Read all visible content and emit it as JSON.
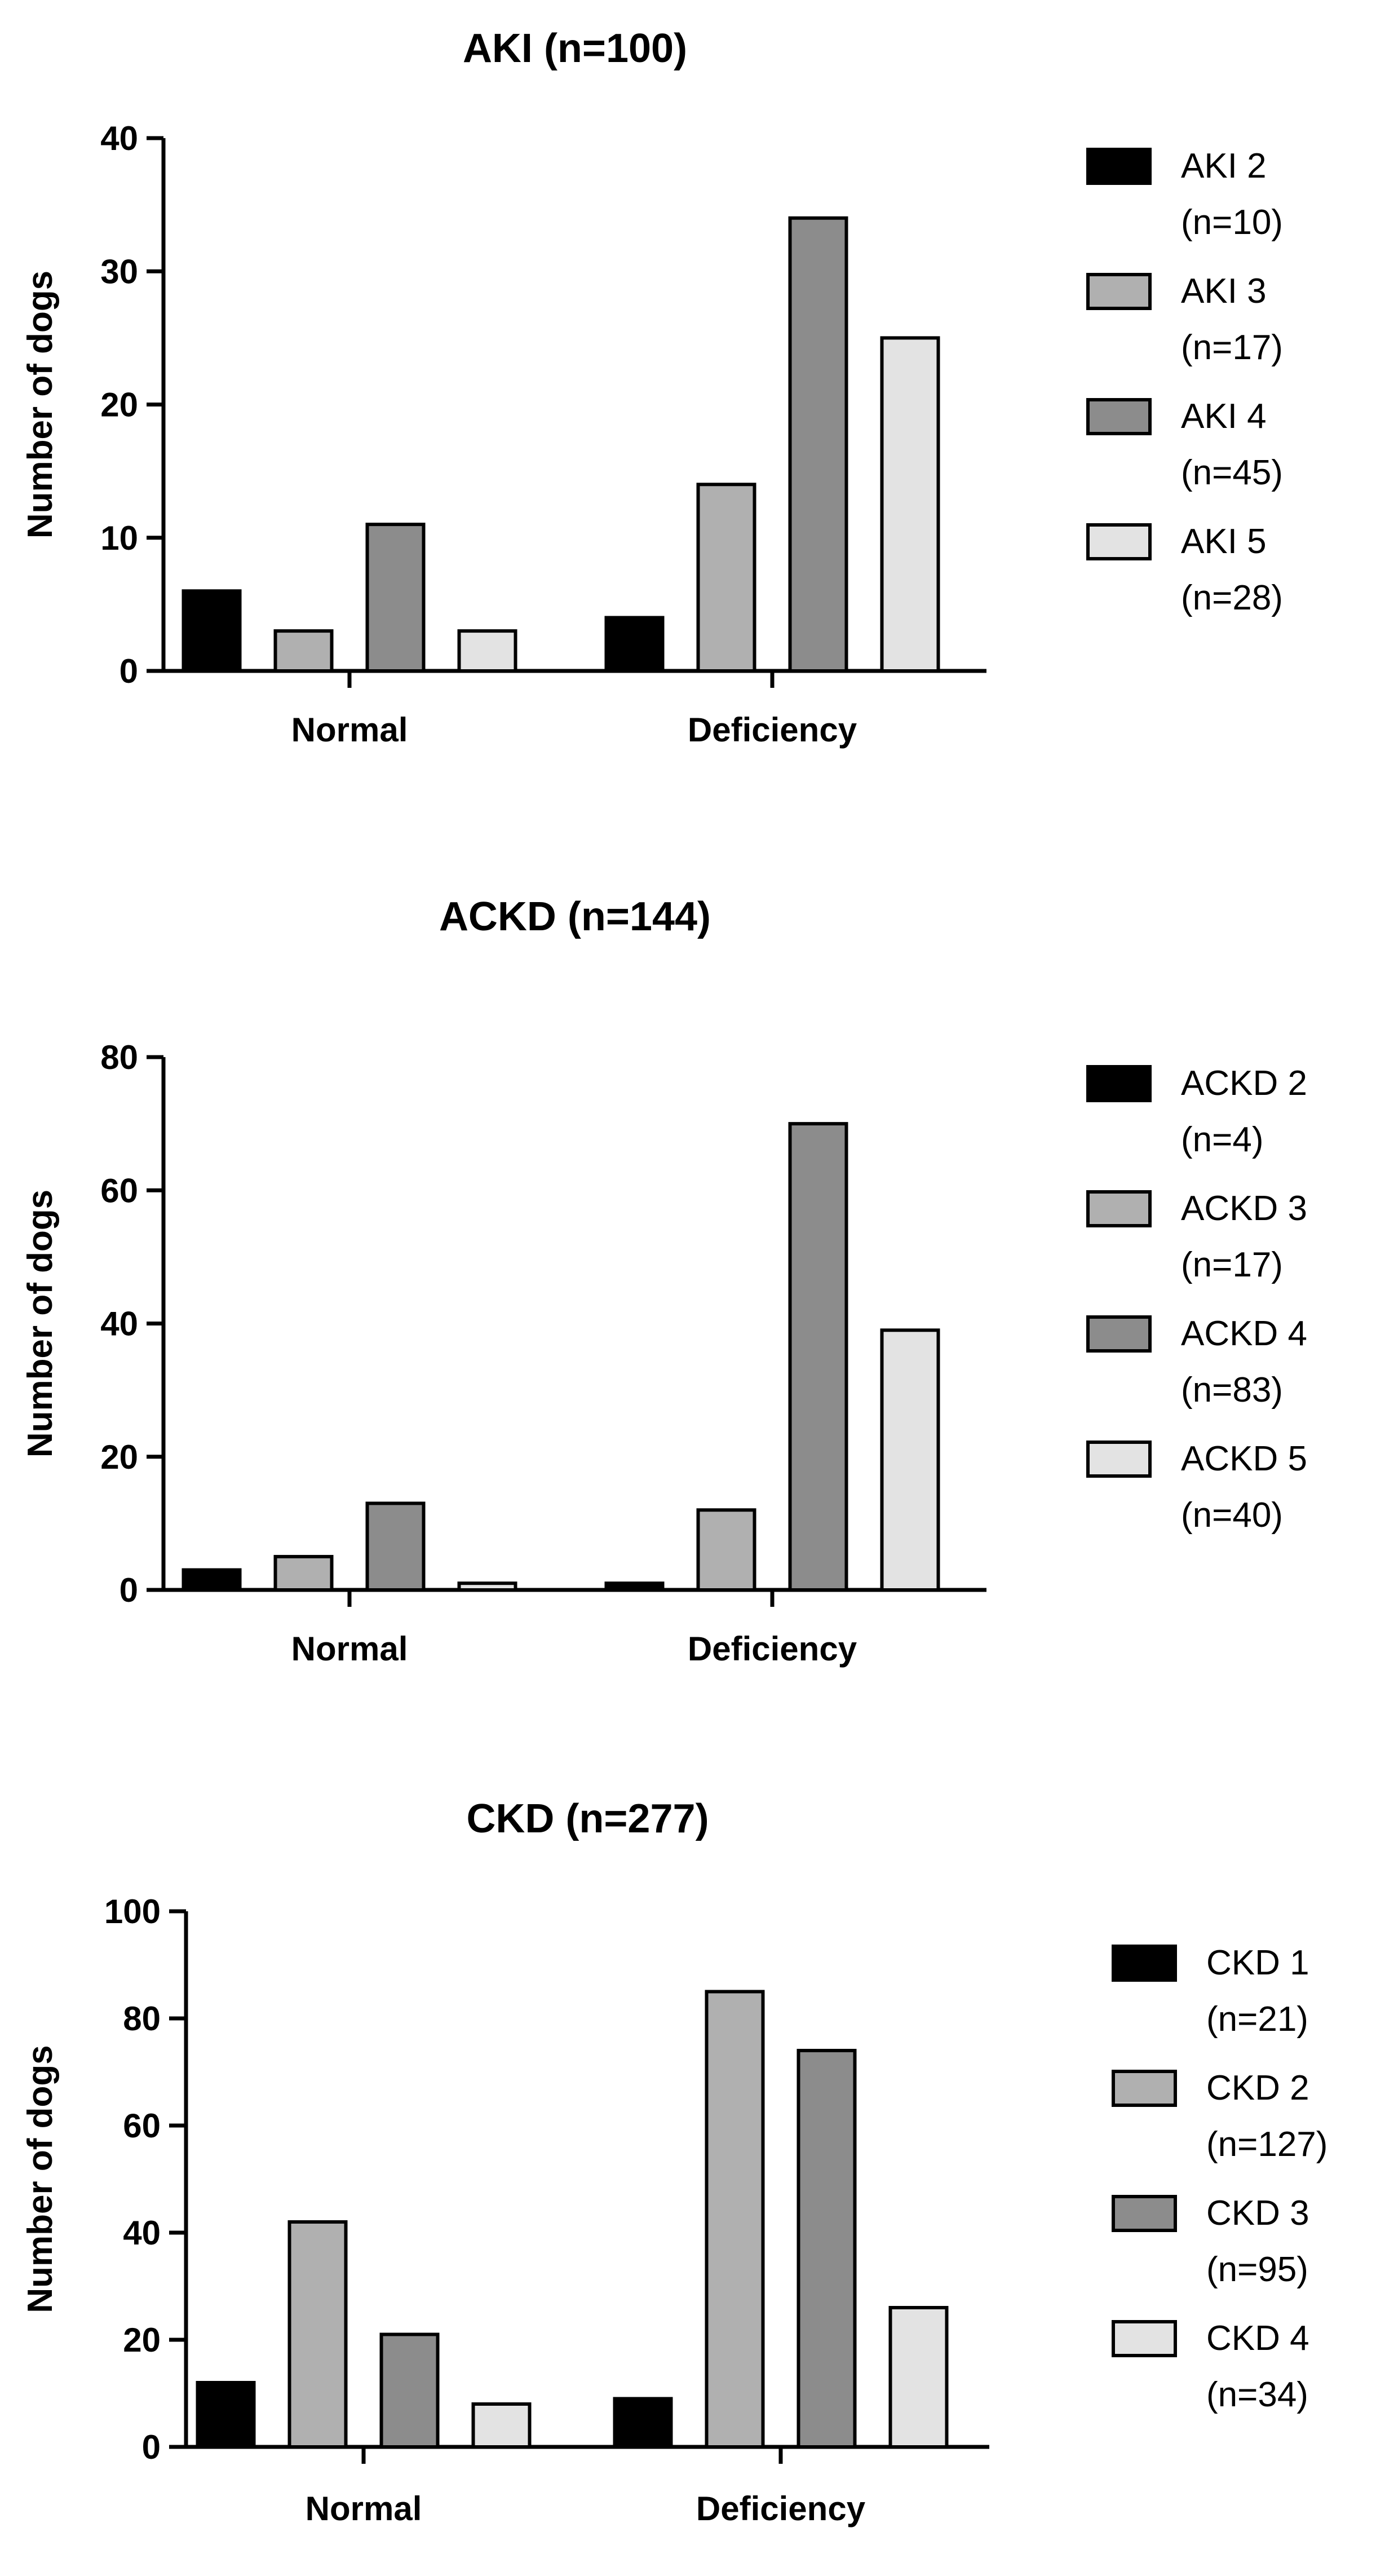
{
  "chart_data": [
    {
      "type": "bar",
      "title": "AKI (n=100)",
      "ylabel": "Number of dogs",
      "xlabel": "",
      "ylim": [
        0,
        40
      ],
      "yticks": [
        0,
        10,
        20,
        30,
        40
      ],
      "categories": [
        "Normal",
        "Deficiency"
      ],
      "series": [
        {
          "name": "AKI 2",
          "n_label": "(n=10)",
          "color": "#000000",
          "values": [
            6,
            4
          ]
        },
        {
          "name": "AKI 3",
          "n_label": "(n=17)",
          "color": "#b0b0b0",
          "values": [
            3,
            14
          ]
        },
        {
          "name": "AKI 4",
          "n_label": "(n=45)",
          "color": "#8c8c8c",
          "values": [
            11,
            34
          ]
        },
        {
          "name": "AKI 5",
          "n_label": "(n=28)",
          "color": "#e3e3e3",
          "values": [
            3,
            25
          ]
        }
      ]
    },
    {
      "type": "bar",
      "title": "ACKD (n=144)",
      "ylabel": "Number of dogs",
      "xlabel": "",
      "ylim": [
        0,
        80
      ],
      "yticks": [
        0,
        20,
        40,
        60,
        80
      ],
      "categories": [
        "Normal",
        "Deficiency"
      ],
      "series": [
        {
          "name": "ACKD 2",
          "n_label": "(n=4)",
          "color": "#000000",
          "values": [
            3,
            1
          ]
        },
        {
          "name": "ACKD 3",
          "n_label": "(n=17)",
          "color": "#b0b0b0",
          "values": [
            5,
            12
          ]
        },
        {
          "name": "ACKD 4",
          "n_label": "(n=83)",
          "color": "#8c8c8c",
          "values": [
            13,
            70
          ]
        },
        {
          "name": "ACKD 5",
          "n_label": "(n=40)",
          "color": "#e3e3e3",
          "values": [
            1,
            39
          ]
        }
      ]
    },
    {
      "type": "bar",
      "title": "CKD (n=277)",
      "ylabel": "Number of dogs",
      "xlabel": "",
      "ylim": [
        0,
        100
      ],
      "yticks": [
        0,
        20,
        40,
        60,
        80,
        100
      ],
      "categories": [
        "Normal",
        "Deficiency"
      ],
      "series": [
        {
          "name": "CKD 1",
          "n_label": "(n=21)",
          "color": "#000000",
          "values": [
            12,
            9
          ]
        },
        {
          "name": "CKD 2",
          "n_label": "(n=127)",
          "color": "#b0b0b0",
          "values": [
            42,
            85
          ]
        },
        {
          "name": "CKD 3",
          "n_label": "(n=95)",
          "color": "#8c8c8c",
          "values": [
            21,
            74
          ]
        },
        {
          "name": "CKD 4",
          "n_label": "(n=34)",
          "color": "#e3e3e3",
          "values": [
            8,
            26
          ]
        }
      ]
    }
  ]
}
